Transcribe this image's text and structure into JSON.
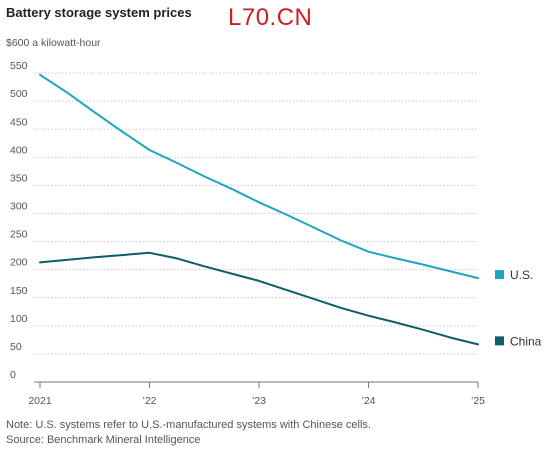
{
  "header": {
    "title": "Battery storage system prices",
    "watermark": "L70.CN"
  },
  "chart_data": {
    "type": "line",
    "title": "Battery storage system prices",
    "unit_label": "$600 a kilowatt-hour",
    "ylim": [
      0,
      600
    ],
    "y_ticks": [
      0,
      50,
      100,
      150,
      200,
      250,
      300,
      350,
      400,
      450,
      500,
      550
    ],
    "xlim": [
      2021,
      2025
    ],
    "x_ticks": [
      2021,
      2022,
      2023,
      2024,
      2025
    ],
    "x_tick_labels": [
      "2021",
      "’22",
      "’23",
      "’24",
      "’25"
    ],
    "grid": "horizontal",
    "legend": "right, inline at line ends",
    "series": [
      {
        "name": "U.S.",
        "color": "#1ea5be",
        "points": [
          [
            2021.0,
            547
          ],
          [
            2021.25,
            515
          ],
          [
            2021.5,
            480
          ],
          [
            2021.75,
            446
          ],
          [
            2022.0,
            413
          ],
          [
            2022.25,
            390
          ],
          [
            2022.5,
            366
          ],
          [
            2022.75,
            344
          ],
          [
            2023.0,
            320
          ],
          [
            2023.25,
            298
          ],
          [
            2023.5,
            275
          ],
          [
            2023.75,
            252
          ],
          [
            2024.0,
            232
          ],
          [
            2024.25,
            220
          ],
          [
            2024.5,
            209
          ],
          [
            2024.75,
            197
          ],
          [
            2025.0,
            185
          ]
        ]
      },
      {
        "name": "China",
        "color": "#0d5e68",
        "points": [
          [
            2021.0,
            213
          ],
          [
            2021.5,
            222
          ],
          [
            2022.0,
            230
          ],
          [
            2022.25,
            220
          ],
          [
            2022.5,
            206
          ],
          [
            2022.75,
            193
          ],
          [
            2023.0,
            180
          ],
          [
            2023.25,
            164
          ],
          [
            2023.5,
            148
          ],
          [
            2023.75,
            132
          ],
          [
            2024.0,
            118
          ],
          [
            2024.25,
            106
          ],
          [
            2024.5,
            93
          ],
          [
            2024.75,
            79
          ],
          [
            2025.0,
            67
          ]
        ]
      }
    ]
  },
  "footer": {
    "note": "Note: U.S. systems refer to U.S.-manufactured systems with Chinese cells.",
    "source": "Source: Benchmark Mineral Intelligence"
  }
}
